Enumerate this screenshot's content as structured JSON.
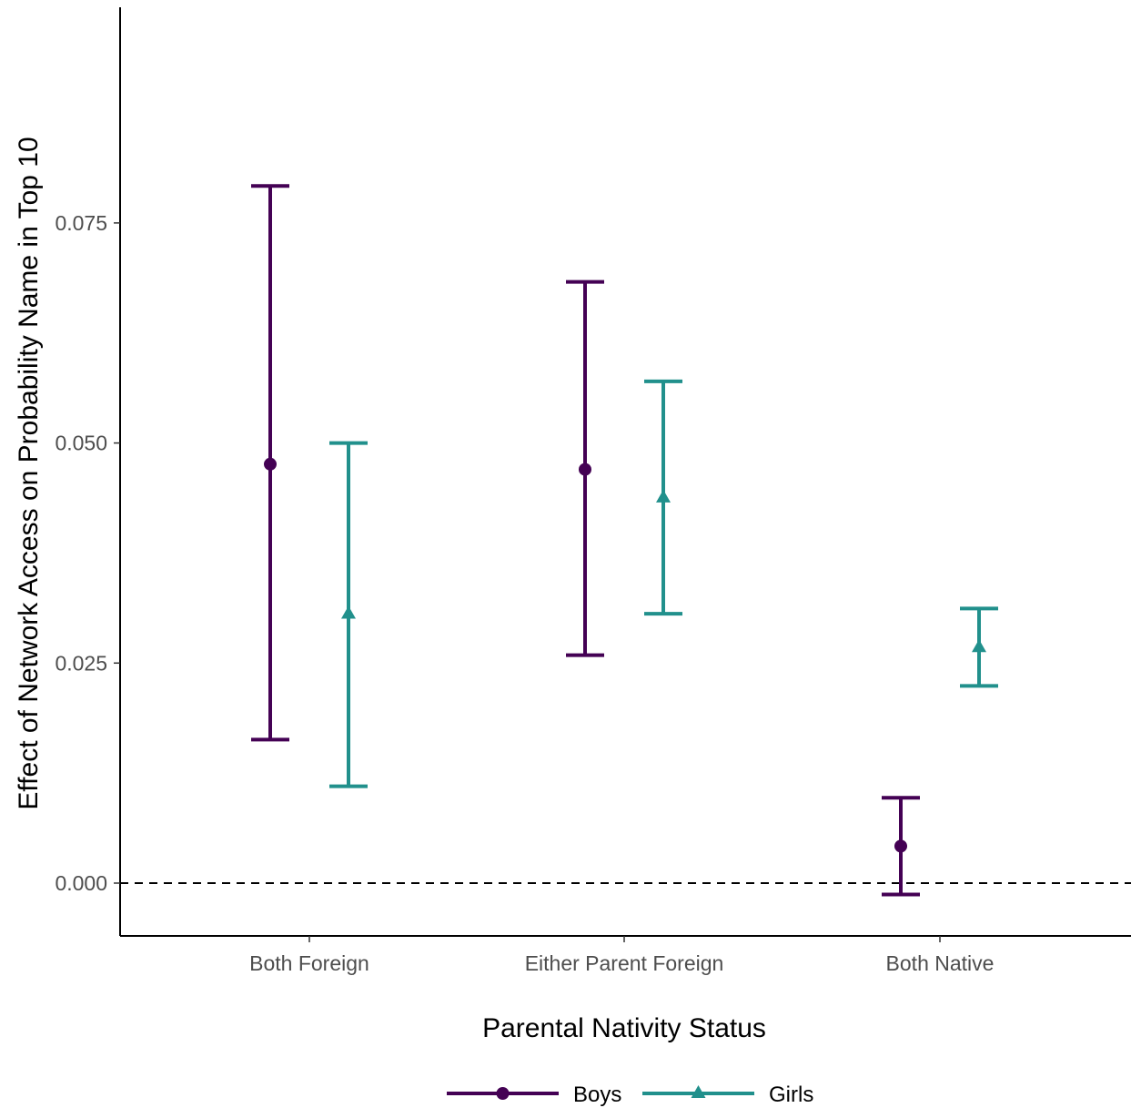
{
  "chart_data": {
    "type": "errorbar",
    "title": "",
    "xlabel": "Parental Nativity Status",
    "ylabel": "Effect of Network Access on Probability Name in Top 10",
    "categories": [
      "Both Foreign",
      "Either Parent Foreign",
      "Both Native"
    ],
    "ylim": [
      -0.006,
      0.0995
    ],
    "yticks": [
      0.0,
      0.025,
      0.05,
      0.075
    ],
    "ytick_labels": [
      "0.000",
      "0.025",
      "0.050",
      "0.075"
    ],
    "reference_line": {
      "y": 0.0,
      "style": "dashed"
    },
    "grid": false,
    "legend_position": "bottom",
    "series": [
      {
        "name": "Boys",
        "color": "#440154",
        "marker": "circle",
        "estimate": [
          0.0476,
          0.047,
          0.0042
        ],
        "lower": [
          0.0163,
          0.0259,
          -0.0013
        ],
        "upper": [
          0.0792,
          0.0683,
          0.0097
        ]
      },
      {
        "name": "Girls",
        "color": "#21908C",
        "marker": "triangle",
        "estimate": [
          0.0306,
          0.0438,
          0.0268
        ],
        "lower": [
          0.011,
          0.0306,
          0.0224
        ],
        "upper": [
          0.05,
          0.057,
          0.0312
        ]
      }
    ]
  }
}
